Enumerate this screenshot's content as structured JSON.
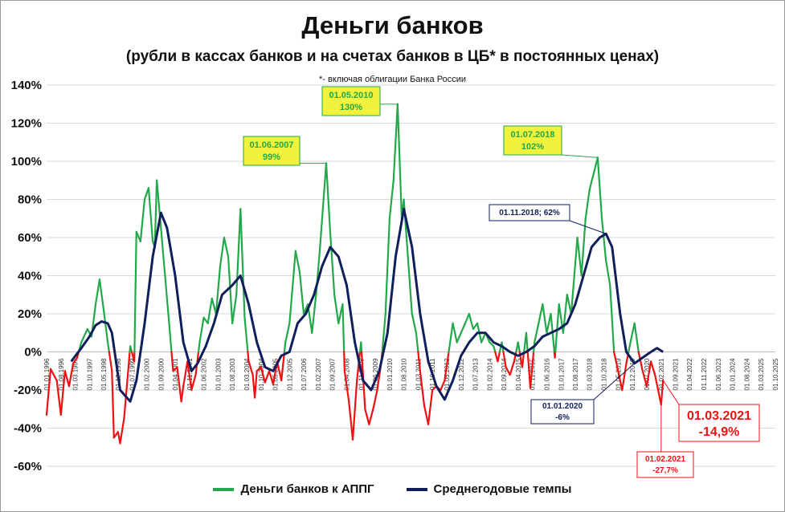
{
  "header": {
    "title": "Деньги банков",
    "subtitle": "(рубли в кассах банков и на счетах банков в ЦБ* в постоянных ценах)",
    "footnote": "*- включая облигации Банка России"
  },
  "colors": {
    "green": "#22a84a",
    "red": "#ee1111",
    "navy": "#0e1f5c",
    "callout_fill": "#f2f23c",
    "grid": "#d9d9d9"
  },
  "legend": {
    "green_label": "Деньги банков к АППГ",
    "navy_label": "Среднегодовые темпы"
  },
  "annotations": [
    {
      "id": "a2007",
      "lines": [
        "01.06.2007",
        "99%"
      ],
      "style": "yellow",
      "x": "2007-06-01",
      "y": 99
    },
    {
      "id": "a2010",
      "lines": [
        "01.05.2010",
        "130%"
      ],
      "style": "yellow",
      "x": "2010-05-01",
      "y": 130
    },
    {
      "id": "a2018",
      "lines": [
        "01.07.2018",
        "102%"
      ],
      "style": "yellow",
      "x": "2018-07-01",
      "y": 102
    },
    {
      "id": "a2018n",
      "lines": [
        "01.11.2018; 62%"
      ],
      "style": "navy",
      "x": "2018-11-01",
      "y": 62
    },
    {
      "id": "a2020",
      "lines": [
        "01.01.2020",
        "-6%"
      ],
      "style": "navy",
      "x": "2020-01-01",
      "y": -6
    },
    {
      "id": "a2021m",
      "lines": [
        "01.03.2021",
        "-14,9%"
      ],
      "style": "red-big",
      "x": "2021-03-01",
      "y": -14.9
    },
    {
      "id": "a2021f",
      "lines": [
        "01.02.2021",
        "-27,7%"
      ],
      "style": "red-small",
      "x": "2021-02-01",
      "y": -27.7
    }
  ],
  "chart_data": {
    "type": "line",
    "title": "Деньги банков",
    "subtitle": "(рубли в кассах банков и на счетах банков в ЦБ* в постоянных ценах)",
    "ylim": [
      -60,
      140
    ],
    "yticks": [
      "-60%",
      "-40%",
      "-20%",
      "0%",
      "20%",
      "40%",
      "60%",
      "80%",
      "100%",
      "120%",
      "140%"
    ],
    "ytick_values": [
      -60,
      -40,
      -20,
      0,
      20,
      40,
      60,
      80,
      100,
      120,
      140
    ],
    "xlim": [
      "1996-01-01",
      "2025-10-01"
    ],
    "xticks": [
      "01.01.1996",
      "01.08.1996",
      "01.03.1997",
      "01.10.1997",
      "01.05.1998",
      "01.12.1998",
      "01.07.1999",
      "01.02.2000",
      "01.09.2000",
      "01.04.2001",
      "01.11.2001",
      "01.06.2002",
      "01.01.2003",
      "01.08.2003",
      "01.03.2004",
      "01.10.2004",
      "01.05.2005",
      "01.12.2005",
      "01.07.2006",
      "01.02.2007",
      "01.09.2007",
      "01.04.2008",
      "01.11.2008",
      "01.06.2009",
      "01.01.2010",
      "01.08.2010",
      "01.03.2011",
      "01.10.2011",
      "01.05.2012",
      "01.12.2012",
      "01.07.2013",
      "01.02.2014",
      "01.09.2014",
      "01.04.2015",
      "01.11.2015",
      "01.06.2016",
      "01.01.2017",
      "01.08.2017",
      "01.03.2018",
      "01.10.2018",
      "01.05.2019",
      "01.12.2019",
      "01.07.2020",
      "01.02.2021",
      "01.09.2021",
      "01.04.2022",
      "01.11.2022",
      "01.06.2023",
      "01.01.2024",
      "01.08.2024",
      "01.03.2025",
      "01.10.2025"
    ],
    "grid": true,
    "legend": "bottom",
    "series": [
      {
        "name": "Деньги банков к АППГ",
        "color_positive": "#22a84a",
        "color_negative": "#ee1111",
        "points": [
          [
            "1996-01-01",
            -33
          ],
          [
            "1996-03-01",
            -9
          ],
          [
            "1996-06-01",
            -15
          ],
          [
            "1996-08-01",
            -33
          ],
          [
            "1996-10-01",
            -10
          ],
          [
            "1996-12-01",
            -18
          ],
          [
            "1997-02-01",
            -6
          ],
          [
            "1997-04-01",
            -3
          ],
          [
            "1997-06-01",
            5
          ],
          [
            "1997-09-01",
            12
          ],
          [
            "1997-11-01",
            8
          ],
          [
            "1998-01-01",
            25
          ],
          [
            "1998-03-01",
            38
          ],
          [
            "1998-05-01",
            22
          ],
          [
            "1998-07-01",
            5
          ],
          [
            "1998-09-01",
            -10
          ],
          [
            "1998-10-01",
            -45
          ],
          [
            "1998-12-01",
            -42
          ],
          [
            "1999-01-01",
            -48
          ],
          [
            "1999-03-01",
            -35
          ],
          [
            "1999-05-01",
            -10
          ],
          [
            "1999-06-01",
            3
          ],
          [
            "1999-08-01",
            -5
          ],
          [
            "1999-09-01",
            63
          ],
          [
            "1999-11-01",
            58
          ],
          [
            "2000-01-01",
            80
          ],
          [
            "2000-03-01",
            86
          ],
          [
            "2000-05-01",
            58
          ],
          [
            "2000-06-01",
            55
          ],
          [
            "2000-07-01",
            90
          ],
          [
            "2000-09-01",
            65
          ],
          [
            "2000-11-01",
            40
          ],
          [
            "2001-01-01",
            15
          ],
          [
            "2001-03-01",
            -10
          ],
          [
            "2001-05-01",
            -8
          ],
          [
            "2001-07-01",
            -26
          ],
          [
            "2001-08-01",
            -18
          ],
          [
            "2001-10-01",
            -5
          ],
          [
            "2001-12-01",
            -20
          ],
          [
            "2002-02-01",
            -12
          ],
          [
            "2002-04-01",
            5
          ],
          [
            "2002-06-01",
            18
          ],
          [
            "2002-08-01",
            15
          ],
          [
            "2002-10-01",
            28
          ],
          [
            "2002-12-01",
            20
          ],
          [
            "2003-02-01",
            45
          ],
          [
            "2003-04-01",
            60
          ],
          [
            "2003-06-01",
            50
          ],
          [
            "2003-08-01",
            15
          ],
          [
            "2003-10-01",
            30
          ],
          [
            "2003-12-01",
            75
          ],
          [
            "2004-02-01",
            18
          ],
          [
            "2004-04-01",
            -5
          ],
          [
            "2004-06-01",
            -12
          ],
          [
            "2004-07-01",
            -24
          ],
          [
            "2004-08-01",
            -10
          ],
          [
            "2004-10-01",
            -8
          ],
          [
            "2004-12-01",
            -16
          ],
          [
            "2005-02-01",
            -10
          ],
          [
            "2005-04-01",
            -17
          ],
          [
            "2005-06-01",
            -5
          ],
          [
            "2005-08-01",
            -15
          ],
          [
            "2005-10-01",
            5
          ],
          [
            "2005-12-01",
            15
          ],
          [
            "2006-03-01",
            53
          ],
          [
            "2006-05-01",
            42
          ],
          [
            "2006-07-01",
            20
          ],
          [
            "2006-09-01",
            25
          ],
          [
            "2006-11-01",
            10
          ],
          [
            "2007-01-01",
            30
          ],
          [
            "2007-03-01",
            55
          ],
          [
            "2007-06-01",
            99
          ],
          [
            "2007-08-01",
            62
          ],
          [
            "2007-10-01",
            30
          ],
          [
            "2007-12-01",
            15
          ],
          [
            "2008-02-01",
            25
          ],
          [
            "2008-03-01",
            -10
          ],
          [
            "2008-05-01",
            -25
          ],
          [
            "2008-07-01",
            -46
          ],
          [
            "2008-09-01",
            -15
          ],
          [
            "2008-11-01",
            5
          ],
          [
            "2009-01-01",
            -30
          ],
          [
            "2009-03-01",
            -38
          ],
          [
            "2009-05-01",
            -30
          ],
          [
            "2009-07-01",
            -20
          ],
          [
            "2009-09-01",
            -5
          ],
          [
            "2009-11-01",
            20
          ],
          [
            "2010-01-01",
            70
          ],
          [
            "2010-03-01",
            90
          ],
          [
            "2010-05-01",
            130
          ],
          [
            "2010-07-01",
            70
          ],
          [
            "2010-08-01",
            80
          ],
          [
            "2010-10-01",
            50
          ],
          [
            "2010-12-01",
            20
          ],
          [
            "2011-02-01",
            10
          ],
          [
            "2011-04-01",
            -10
          ],
          [
            "2011-06-01",
            -28
          ],
          [
            "2011-08-01",
            -38
          ],
          [
            "2011-10-01",
            -20
          ],
          [
            "2011-12-01",
            -18
          ],
          [
            "2012-02-01",
            -20
          ],
          [
            "2012-04-01",
            -15
          ],
          [
            "2012-06-01",
            0
          ],
          [
            "2012-08-01",
            15
          ],
          [
            "2012-10-01",
            5
          ],
          [
            "2012-12-01",
            10
          ],
          [
            "2013-02-01",
            15
          ],
          [
            "2013-04-01",
            20
          ],
          [
            "2013-06-01",
            12
          ],
          [
            "2013-08-01",
            15
          ],
          [
            "2013-10-01",
            5
          ],
          [
            "2013-12-01",
            10
          ],
          [
            "2014-02-01",
            5
          ],
          [
            "2014-04-01",
            3
          ],
          [
            "2014-06-01",
            -5
          ],
          [
            "2014-08-01",
            5
          ],
          [
            "2014-10-01",
            -8
          ],
          [
            "2014-12-01",
            -12
          ],
          [
            "2015-02-01",
            -5
          ],
          [
            "2015-04-01",
            5
          ],
          [
            "2015-06-01",
            -8
          ],
          [
            "2015-08-01",
            10
          ],
          [
            "2015-10-01",
            -19
          ],
          [
            "2015-12-01",
            5
          ],
          [
            "2016-02-01",
            15
          ],
          [
            "2016-04-01",
            25
          ],
          [
            "2016-06-01",
            10
          ],
          [
            "2016-08-01",
            20
          ],
          [
            "2016-10-01",
            -3
          ],
          [
            "2016-12-01",
            25
          ],
          [
            "2017-02-01",
            10
          ],
          [
            "2017-04-01",
            30
          ],
          [
            "2017-06-01",
            20
          ],
          [
            "2017-09-01",
            60
          ],
          [
            "2017-11-01",
            40
          ],
          [
            "2018-01-01",
            70
          ],
          [
            "2018-03-01",
            85
          ],
          [
            "2018-07-01",
            102
          ],
          [
            "2018-09-01",
            70
          ],
          [
            "2018-11-01",
            48
          ],
          [
            "2019-01-01",
            35
          ],
          [
            "2019-03-01",
            0
          ],
          [
            "2019-05-01",
            -10
          ],
          [
            "2019-07-01",
            -20
          ],
          [
            "2019-09-01",
            -6
          ],
          [
            "2019-11-01",
            5
          ],
          [
            "2020-01-01",
            15
          ],
          [
            "2020-03-01",
            0
          ],
          [
            "2020-05-01",
            -10
          ],
          [
            "2020-07-01",
            -18
          ],
          [
            "2020-09-01",
            -5
          ],
          [
            "2020-11-01",
            -12
          ],
          [
            "2021-02-01",
            -27.7
          ],
          [
            "2021-03-01",
            -14.9
          ]
        ]
      },
      {
        "name": "Среднегодовые темпы",
        "color": "#0e1f5c",
        "points": [
          [
            "1997-01-01",
            -5
          ],
          [
            "1997-06-01",
            2
          ],
          [
            "1997-10-01",
            8
          ],
          [
            "1998-01-01",
            14
          ],
          [
            "1998-04-01",
            16
          ],
          [
            "1998-07-01",
            15
          ],
          [
            "1998-09-01",
            10
          ],
          [
            "1999-01-01",
            -20
          ],
          [
            "1999-06-01",
            -26
          ],
          [
            "1999-09-01",
            -15
          ],
          [
            "2000-01-01",
            15
          ],
          [
            "2000-05-01",
            50
          ],
          [
            "2000-09-01",
            73
          ],
          [
            "2000-12-01",
            65
          ],
          [
            "2001-04-01",
            40
          ],
          [
            "2001-08-01",
            5
          ],
          [
            "2001-12-01",
            -10
          ],
          [
            "2002-03-01",
            -6
          ],
          [
            "2002-07-01",
            3
          ],
          [
            "2002-11-01",
            15
          ],
          [
            "2003-03-01",
            30
          ],
          [
            "2003-08-01",
            35
          ],
          [
            "2003-12-01",
            40
          ],
          [
            "2004-04-01",
            25
          ],
          [
            "2004-08-01",
            5
          ],
          [
            "2004-12-01",
            -8
          ],
          [
            "2005-04-01",
            -10
          ],
          [
            "2005-08-01",
            -2
          ],
          [
            "2005-12-01",
            0
          ],
          [
            "2006-04-01",
            15
          ],
          [
            "2006-08-01",
            20
          ],
          [
            "2006-12-01",
            30
          ],
          [
            "2007-04-01",
            45
          ],
          [
            "2007-08-01",
            55
          ],
          [
            "2007-12-01",
            50
          ],
          [
            "2008-04-01",
            35
          ],
          [
            "2008-08-01",
            5
          ],
          [
            "2008-12-01",
            -15
          ],
          [
            "2009-04-01",
            -20
          ],
          [
            "2009-08-01",
            -10
          ],
          [
            "2009-12-01",
            10
          ],
          [
            "2010-04-01",
            50
          ],
          [
            "2010-08-01",
            75
          ],
          [
            "2010-12-01",
            55
          ],
          [
            "2011-04-01",
            20
          ],
          [
            "2011-08-01",
            -5
          ],
          [
            "2011-12-01",
            -18
          ],
          [
            "2012-04-01",
            -25
          ],
          [
            "2012-08-01",
            -15
          ],
          [
            "2012-12-01",
            -2
          ],
          [
            "2013-04-01",
            5
          ],
          [
            "2013-08-01",
            10
          ],
          [
            "2013-12-01",
            10
          ],
          [
            "2014-04-01",
            5
          ],
          [
            "2014-08-01",
            3
          ],
          [
            "2014-12-01",
            0
          ],
          [
            "2015-04-01",
            -2
          ],
          [
            "2015-08-01",
            0
          ],
          [
            "2015-12-01",
            3
          ],
          [
            "2016-04-01",
            8
          ],
          [
            "2016-08-01",
            10
          ],
          [
            "2016-12-01",
            12
          ],
          [
            "2017-04-01",
            15
          ],
          [
            "2017-08-01",
            25
          ],
          [
            "2017-12-01",
            40
          ],
          [
            "2018-04-01",
            55
          ],
          [
            "2018-08-01",
            60
          ],
          [
            "2018-11-01",
            62
          ],
          [
            "2019-02-01",
            55
          ],
          [
            "2019-06-01",
            20
          ],
          [
            "2019-09-01",
            0
          ],
          [
            "2020-01-01",
            -6
          ],
          [
            "2020-05-01",
            -3
          ],
          [
            "2020-09-01",
            0
          ],
          [
            "2020-12-01",
            2
          ],
          [
            "2021-03-01",
            0
          ]
        ]
      }
    ]
  }
}
